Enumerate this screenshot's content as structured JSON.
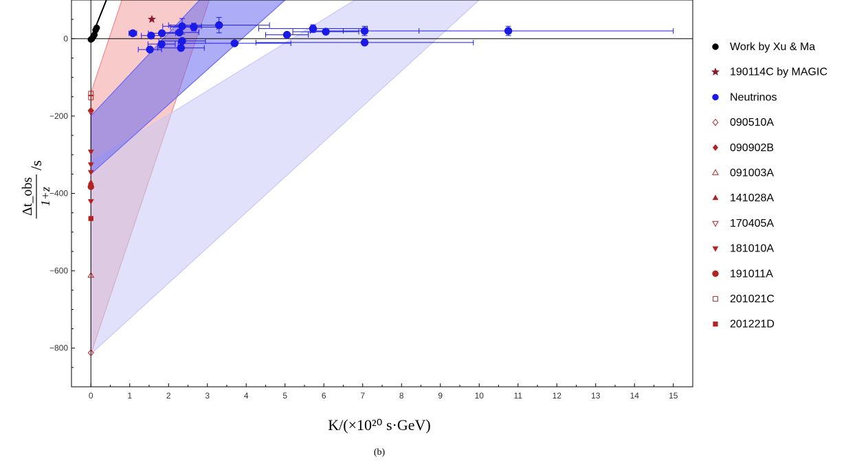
{
  "chart_data": {
    "type": "scatter",
    "title": "",
    "caption": "(b)",
    "xlabel": "K/(×10²⁰ s·GeV)",
    "ylabel": {
      "numerator": "Δt_obs",
      "denominator": "1+z",
      "unit": "/s"
    },
    "xlim": [
      -0.5,
      15.5
    ],
    "ylim": [
      -900,
      100
    ],
    "xticks": [
      0,
      1,
      2,
      3,
      4,
      5,
      6,
      7,
      8,
      9,
      10,
      11,
      12,
      13,
      14,
      15
    ],
    "yticks": [
      -800,
      -600,
      -400,
      -200,
      0
    ],
    "grid": false,
    "legend_position": "right",
    "bands": [
      {
        "color": "#f08a8a",
        "opacity": 0.45,
        "polygon": [
          [
            0,
            -140
          ],
          [
            0,
            -815
          ],
          [
            3.05,
            100
          ],
          [
            0.8,
            100
          ]
        ]
      },
      {
        "color": "#c8c8f8",
        "opacity": 0.55,
        "polygon": [
          [
            0,
            -320
          ],
          [
            0,
            -815
          ],
          [
            10.0,
            100
          ],
          [
            6.8,
            100
          ]
        ]
      },
      {
        "color": "#6a6af0",
        "opacity": 0.55,
        "polygon": [
          [
            0,
            -200
          ],
          [
            0,
            -350
          ],
          [
            5.0,
            100
          ],
          [
            2.8,
            100
          ]
        ]
      }
    ],
    "lines": [
      {
        "name": "",
        "color": "#000000",
        "points": [
          [
            0,
            0
          ],
          [
            0.4,
            100
          ]
        ]
      }
    ],
    "series": [
      {
        "name": "Work by Xu & Ma",
        "marker": "circle",
        "color": "#000000",
        "points": [
          [
            0.0,
            -2
          ],
          [
            0.03,
            0
          ],
          [
            0.06,
            5
          ],
          [
            0.09,
            10
          ],
          [
            0.12,
            22
          ],
          [
            0.15,
            28
          ]
        ]
      },
      {
        "name": "190114C by MAGIC",
        "marker": "star",
        "color": "#8b1a2f",
        "points": [
          [
            1.57,
            50
          ]
        ]
      },
      {
        "name": "Neutrinos",
        "marker": "circle",
        "color": "#1a1ae6",
        "points": [
          {
            "x": 1.08,
            "y": 14,
            "xerr": 0.1,
            "yerr": 6
          },
          {
            "x": 1.52,
            "y": -28,
            "xerr": 0.3,
            "yerr": 5
          },
          {
            "x": 1.55,
            "y": 8,
            "xerr": 0.25,
            "yerr": 5
          },
          {
            "x": 1.82,
            "y": -14,
            "xerr": 0.35,
            "yerr": 5
          },
          {
            "x": 1.83,
            "y": 14,
            "xerr": 0.35,
            "yerr": 5
          },
          {
            "x": 2.28,
            "y": 16,
            "xerr": 0.5,
            "yerr": 5
          },
          {
            "x": 2.32,
            "y": -24,
            "xerr": 0.6,
            "yerr": 5
          },
          {
            "x": 2.35,
            "y": -6,
            "xerr": 0.6,
            "yerr": 6
          },
          {
            "x": 2.35,
            "y": 32,
            "xerr": 0.5,
            "yerr": 20
          },
          {
            "x": 2.65,
            "y": 30,
            "xerr": 0.6,
            "yerr": 10
          },
          {
            "x": 3.3,
            "y": 35,
            "xerr": 1.3,
            "yerr": 20
          },
          {
            "x": 3.7,
            "y": -12,
            "xerr": 1.45,
            "yerr": 5
          },
          {
            "x": 5.05,
            "y": 10,
            "xerr": 0.55,
            "yerr": 6
          },
          {
            "x": 5.72,
            "y": 26,
            "xerr": 1.4,
            "yerr": 10
          },
          {
            "x": 6.05,
            "y": 18,
            "xerr": 0.85,
            "yerr": 6
          },
          {
            "x": 7.05,
            "y": 20,
            "xerr": 1.4,
            "yerr": 12
          },
          {
            "x": 7.05,
            "y": -10,
            "xerr": 2.8,
            "yerr": 5
          },
          {
            "x": 10.75,
            "y": 20,
            "xerr": 4.25,
            "yerr": 12
          }
        ]
      },
      {
        "name": "090510A",
        "marker": "diamond-open",
        "color": "#b22222",
        "points": [
          [
            0,
            -812
          ]
        ]
      },
      {
        "name": "090902B",
        "marker": "diamond",
        "color": "#b22222",
        "points": [
          [
            0,
            -185
          ]
        ]
      },
      {
        "name": "091003A",
        "marker": "triangle-up-open",
        "color": "#b22222",
        "points": [
          [
            0,
            -612
          ]
        ]
      },
      {
        "name": "141028A",
        "marker": "triangle-up",
        "color": "#b22222",
        "points": [
          [
            0,
            -372
          ]
        ]
      },
      {
        "name": "170405A",
        "marker": "triangle-down-open",
        "color": "#b22222",
        "points": [
          [
            0,
            -190
          ]
        ]
      },
      {
        "name": "181010A",
        "marker": "triangle-down",
        "color": "#b22222",
        "points": [
          [
            0,
            -292
          ],
          [
            0,
            -325
          ],
          [
            0,
            -345
          ],
          [
            0,
            -420
          ]
        ]
      },
      {
        "name": "191011A",
        "marker": "circle",
        "color": "#b22222",
        "points": [
          [
            0,
            -383
          ]
        ]
      },
      {
        "name": "201021C",
        "marker": "square-open",
        "color": "#b22222",
        "points": [
          [
            0,
            -142
          ],
          [
            0,
            -152
          ]
        ]
      },
      {
        "name": "201221D",
        "marker": "square",
        "color": "#b22222",
        "points": [
          [
            0,
            -465
          ]
        ]
      }
    ]
  }
}
